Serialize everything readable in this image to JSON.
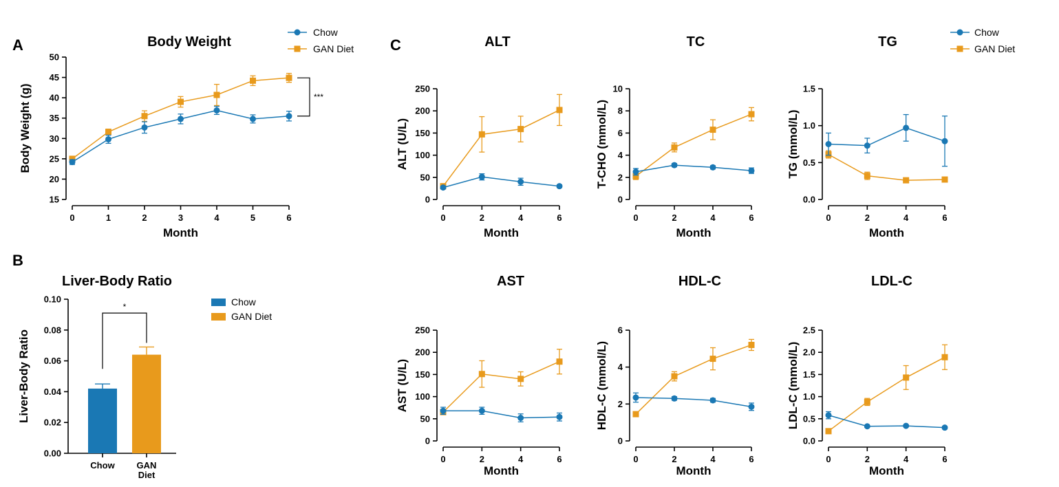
{
  "colors": {
    "chow": "#1a78b4",
    "gan": "#e89a1c"
  },
  "panel_letters": {
    "a": "A",
    "b": "B",
    "c": "C"
  },
  "legend": {
    "chow": "Chow",
    "gan": "GAN Diet"
  },
  "chart_data": [
    {
      "id": "body-weight",
      "type": "line",
      "title": "Body Weight",
      "xlabel": "Month",
      "ylabel": "Body Weight (g)",
      "x": [
        0,
        1,
        2,
        3,
        4,
        5,
        6
      ],
      "xticks": [
        "0",
        "1",
        "2",
        "3",
        "4",
        "5",
        "6"
      ],
      "ylim": [
        15,
        50
      ],
      "yticks": [
        "15",
        "20",
        "25",
        "30",
        "35",
        "40",
        "45",
        "50"
      ],
      "series": [
        {
          "name": "Chow",
          "values": [
            24.2,
            29.8,
            32.7,
            34.8,
            36.9,
            34.8,
            35.5
          ],
          "errors": [
            0.6,
            1.0,
            1.4,
            1.2,
            1.0,
            1.0,
            1.2
          ]
        },
        {
          "name": "GAN Diet",
          "values": [
            25.0,
            31.6,
            35.5,
            39.0,
            40.7,
            44.2,
            44.9
          ],
          "errors": [
            0.5,
            0.7,
            1.3,
            1.3,
            2.6,
            1.2,
            1.1
          ]
        }
      ],
      "significance": "***"
    },
    {
      "id": "liver-body-ratio",
      "type": "bar",
      "title": "Liver-Body Ratio",
      "xlabel": "",
      "ylabel": "Liver-Body Ratio",
      "categories": [
        "Chow",
        "GAN Diet"
      ],
      "category_lines": [
        [
          "Chow"
        ],
        [
          "GAN",
          "Diet"
        ]
      ],
      "values": [
        0.042,
        0.064
      ],
      "errors": [
        0.003,
        0.005
      ],
      "ylim": [
        0,
        0.1
      ],
      "yticks": [
        "0.00",
        "0.02",
        "0.04",
        "0.06",
        "0.08",
        "0.10"
      ],
      "significance": "*"
    },
    {
      "id": "alt",
      "type": "line",
      "title": "ALT",
      "xlabel": "Month",
      "ylabel": "ALT (U/L)",
      "x": [
        0,
        2,
        4,
        6
      ],
      "xticks": [
        "0",
        "2",
        "4",
        "6"
      ],
      "ylim": [
        0,
        250
      ],
      "yticks": [
        "0",
        "50",
        "100",
        "150",
        "200",
        "250"
      ],
      "series": [
        {
          "name": "Chow",
          "values": [
            27,
            51,
            40,
            30
          ],
          "errors": [
            3,
            7,
            8,
            3
          ]
        },
        {
          "name": "GAN Diet",
          "values": [
            30,
            147,
            159,
            202
          ],
          "errors": [
            4,
            40,
            29,
            35
          ]
        }
      ]
    },
    {
      "id": "tc",
      "type": "line",
      "title": "TC",
      "xlabel": "Month",
      "ylabel": "T-CHO (mmol/L)",
      "x": [
        0,
        2,
        4,
        6
      ],
      "xticks": [
        "0",
        "2",
        "4",
        "6"
      ],
      "ylim": [
        0,
        10
      ],
      "yticks": [
        "0",
        "2",
        "4",
        "6",
        "8",
        "10"
      ],
      "series": [
        {
          "name": "Chow",
          "values": [
            2.5,
            3.1,
            2.9,
            2.6
          ],
          "errors": [
            0.3,
            0.15,
            0.15,
            0.25
          ]
        },
        {
          "name": "GAN Diet",
          "values": [
            2.1,
            4.7,
            6.3,
            7.7
          ],
          "errors": [
            0.3,
            0.4,
            0.9,
            0.6
          ]
        }
      ]
    },
    {
      "id": "tg",
      "type": "line",
      "title": "TG",
      "xlabel": "Month",
      "ylabel": "TG (mmol/L)",
      "x": [
        0,
        2,
        4,
        6
      ],
      "xticks": [
        "0",
        "2",
        "4",
        "6"
      ],
      "ylim": [
        0,
        1.5
      ],
      "yticks": [
        "0.0",
        "0.5",
        "1.0",
        "1.5"
      ],
      "series": [
        {
          "name": "Chow",
          "values": [
            0.75,
            0.73,
            0.97,
            0.79
          ],
          "errors": [
            0.15,
            0.1,
            0.18,
            0.34
          ]
        },
        {
          "name": "GAN Diet",
          "values": [
            0.61,
            0.32,
            0.26,
            0.27
          ],
          "errors": [
            0.05,
            0.05,
            0.03,
            0.03
          ]
        }
      ]
    },
    {
      "id": "ast",
      "type": "line",
      "title": "AST",
      "xlabel": "Month",
      "ylabel": "AST (U/L)",
      "x": [
        0,
        2,
        4,
        6
      ],
      "xticks": [
        "0",
        "2",
        "4",
        "6"
      ],
      "ylim": [
        0,
        250
      ],
      "yticks": [
        "0",
        "50",
        "100",
        "150",
        "200",
        "250"
      ],
      "series": [
        {
          "name": "Chow",
          "values": [
            68,
            68,
            52,
            54
          ],
          "errors": [
            8,
            8,
            9,
            9
          ]
        },
        {
          "name": "GAN Diet",
          "values": [
            65,
            151,
            140,
            179
          ],
          "errors": [
            5,
            30,
            16,
            28
          ]
        }
      ]
    },
    {
      "id": "hdl-c",
      "type": "line",
      "title": "HDL-C",
      "xlabel": "Month",
      "ylabel": "HDL-C (mmol/L)",
      "x": [
        0,
        2,
        4,
        6
      ],
      "xticks": [
        "0",
        "2",
        "4",
        "6"
      ],
      "ylim": [
        0,
        6
      ],
      "yticks": [
        "0",
        "2",
        "4",
        "6"
      ],
      "series": [
        {
          "name": "Chow",
          "values": [
            2.35,
            2.3,
            2.2,
            1.85
          ],
          "errors": [
            0.25,
            0.1,
            0.1,
            0.2
          ]
        },
        {
          "name": "GAN Diet",
          "values": [
            1.45,
            3.5,
            4.45,
            5.2
          ],
          "errors": [
            0.1,
            0.25,
            0.6,
            0.3
          ]
        }
      ]
    },
    {
      "id": "ldl-c",
      "type": "line",
      "title": "LDL-C",
      "xlabel": "Month",
      "ylabel": "LDL-C (mmol/L)",
      "x": [
        0,
        2,
        4,
        6
      ],
      "xticks": [
        "0",
        "2",
        "4",
        "6"
      ],
      "ylim": [
        0,
        2.5
      ],
      "yticks": [
        "0.0",
        "0.5",
        "1.0",
        "1.5",
        "2.0",
        "2.5"
      ],
      "series": [
        {
          "name": "Chow",
          "values": [
            0.58,
            0.33,
            0.34,
            0.3
          ],
          "errors": [
            0.08,
            0.02,
            0.02,
            0.03
          ]
        },
        {
          "name": "GAN Diet",
          "values": [
            0.22,
            0.88,
            1.43,
            1.89
          ],
          "errors": [
            0.03,
            0.08,
            0.27,
            0.28
          ]
        }
      ]
    }
  ]
}
